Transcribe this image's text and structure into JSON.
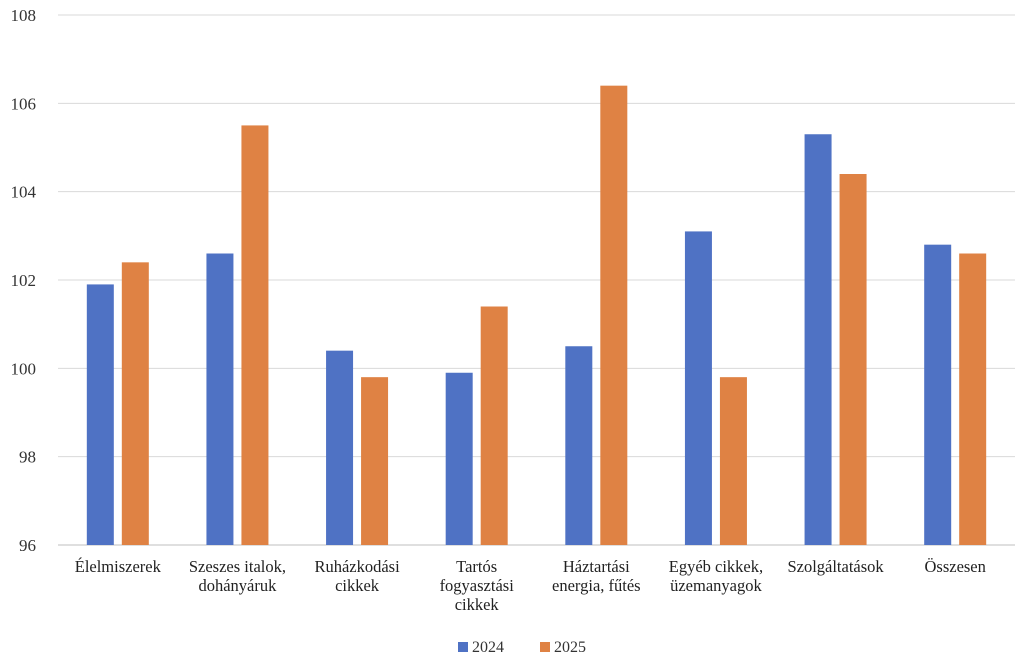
{
  "chart_data": {
    "type": "bar",
    "title": "",
    "xlabel": "",
    "ylabel": "",
    "categories": [
      [
        "Élelmiszerek"
      ],
      [
        "Szeszes italok,",
        "dohányáruk"
      ],
      [
        "Ruházkodási",
        "cikkek"
      ],
      [
        "Tartós",
        "fogyasztási",
        "cikkek"
      ],
      [
        "Háztartási",
        "energia, fűtés"
      ],
      [
        "Egyéb cikkek,",
        "üzemanyagok"
      ],
      [
        "Szolgáltatások"
      ],
      [
        "Összesen"
      ]
    ],
    "series": [
      {
        "name": "2024",
        "color": "#4f72c4",
        "values": [
          101.9,
          102.6,
          100.4,
          99.9,
          100.5,
          103.1,
          105.3,
          102.8
        ]
      },
      {
        "name": "2025",
        "color": "#df8244",
        "values": [
          102.4,
          105.5,
          99.8,
          101.4,
          106.4,
          99.8,
          104.4,
          102.6
        ]
      }
    ],
    "ylim": [
      96,
      108
    ],
    "yticks": [
      96,
      98,
      100,
      102,
      104,
      106,
      108
    ],
    "grid": true,
    "legend": "bottom-center"
  }
}
